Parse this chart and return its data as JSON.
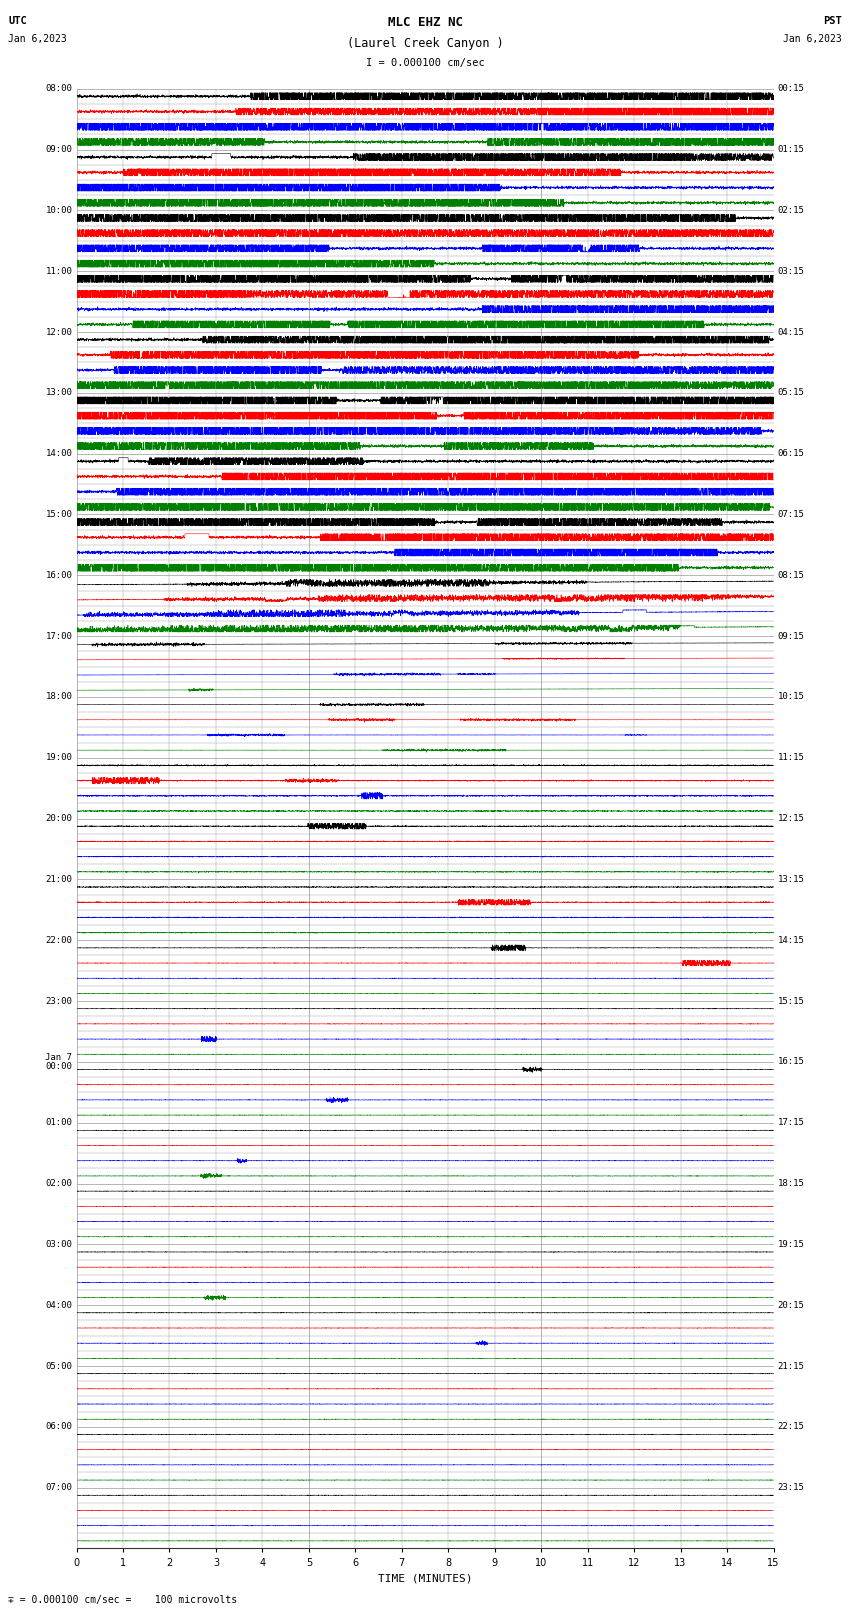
{
  "title_line1": "MLC EHZ NC",
  "title_line2": "(Laurel Creek Canyon )",
  "scale_label": "I = 0.000100 cm/sec",
  "footer_label": "∓ = 0.000100 cm/sec =    100 microvolts",
  "xlabel": "TIME (MINUTES)",
  "xlim": [
    0,
    15
  ],
  "xticks": [
    0,
    1,
    2,
    3,
    4,
    5,
    6,
    7,
    8,
    9,
    10,
    11,
    12,
    13,
    14,
    15
  ],
  "bg_color": "#ffffff",
  "grid_color": "#999999",
  "trace_colors": [
    "black",
    "red",
    "blue",
    "green"
  ],
  "num_hours": 24,
  "traces_per_hour": 4,
  "seed": 12345,
  "left_times_utc": [
    "08:00",
    "09:00",
    "10:00",
    "11:00",
    "12:00",
    "13:00",
    "14:00",
    "15:00",
    "16:00",
    "17:00",
    "18:00",
    "19:00",
    "20:00",
    "21:00",
    "22:00",
    "23:00",
    "Jan 7\n00:00",
    "01:00",
    "02:00",
    "03:00",
    "04:00",
    "05:00",
    "06:00",
    "07:00"
  ],
  "right_times_pst": [
    "00:15",
    "01:15",
    "02:15",
    "03:15",
    "04:15",
    "05:15",
    "06:15",
    "07:15",
    "08:15",
    "09:15",
    "10:15",
    "11:15",
    "12:15",
    "13:15",
    "14:15",
    "15:15",
    "16:15",
    "17:15",
    "18:15",
    "19:15",
    "20:15",
    "21:15",
    "22:15",
    "23:15"
  ]
}
